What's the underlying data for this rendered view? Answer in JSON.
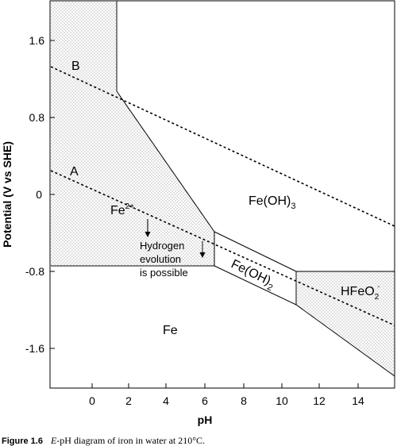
{
  "diagram": {
    "x_axis": {
      "label": "pH",
      "ticks": [
        "0",
        "2",
        "4",
        "6",
        "8",
        "10",
        "12",
        "14"
      ]
    },
    "y_axis": {
      "label": "Potential (V vs SHE)",
      "ticks": [
        "1.6",
        "0.8",
        "0",
        "-0.8",
        "-1.6"
      ]
    },
    "lines": {
      "a_label": "A",
      "b_label": "B"
    },
    "regions": {
      "fe2": {
        "base": "Fe",
        "sup": "2+"
      },
      "feoh3": {
        "base": "Fe(OH)",
        "sub": "3"
      },
      "feoh2": {
        "base": "Fe(OH)",
        "sub": "2"
      },
      "hfeo2": {
        "base": "HFeO",
        "sub": "2",
        "sup": "-"
      },
      "fe": "Fe"
    },
    "annotation": {
      "line1": "Hydrogen",
      "line2": "evolution",
      "line3": "is possible"
    }
  },
  "caption": {
    "prefix": "Figure 1.6",
    "italic": "E",
    "text": "-pH diagram of iron in water at 210°C."
  }
}
